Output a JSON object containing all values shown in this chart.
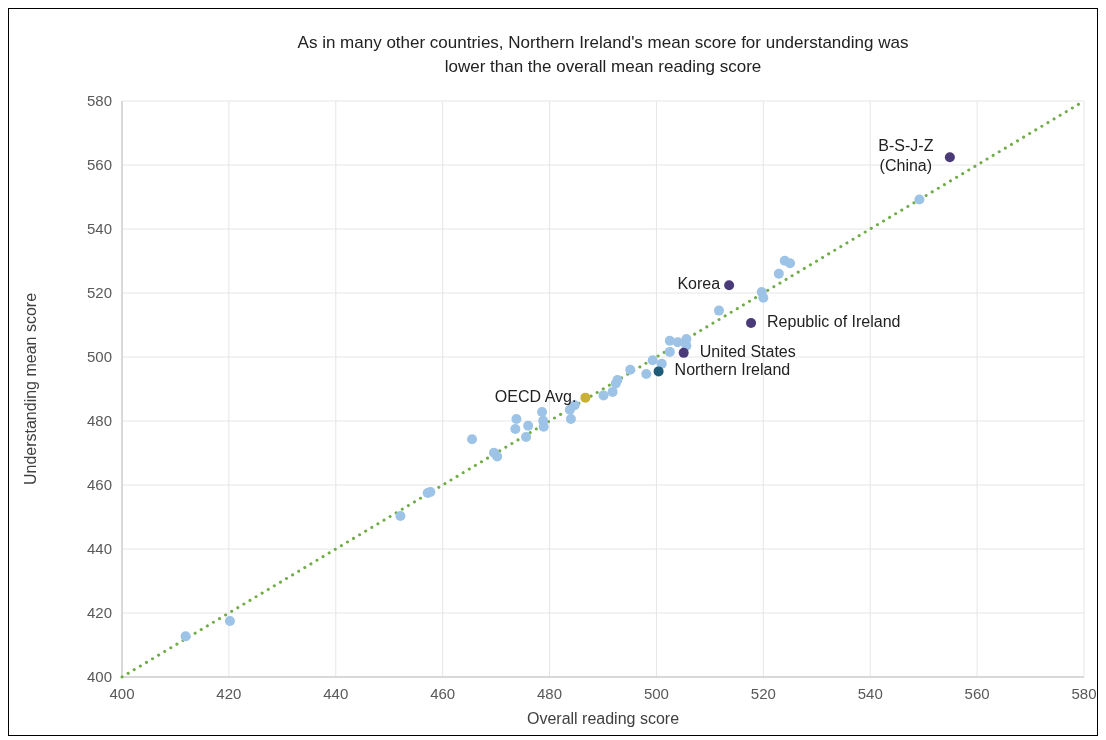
{
  "chart_data": {
    "type": "scatter",
    "title": "As in many other countries, Northern Ireland's mean score for understanding was\nlower than the overall mean reading score",
    "xlabel": "Overall reading score",
    "ylabel": "Understanding mean score",
    "xlim": [
      400,
      580
    ],
    "ylim": [
      400,
      580
    ],
    "xticks": [
      400,
      420,
      440,
      460,
      480,
      500,
      520,
      540,
      560,
      580
    ],
    "yticks": [
      400,
      420,
      440,
      460,
      480,
      500,
      520,
      540,
      560,
      580
    ],
    "grid": true,
    "marker": "circle",
    "series": [
      {
        "type": "line",
        "color": "#70ad47",
        "line_style": "dotted",
        "marker": "none",
        "x": [
          400,
          580
        ],
        "values": [
          400,
          580
        ]
      },
      {
        "color": "#9dc3e6",
        "x": [
          411.9,
          420.2,
          452.1,
          457.2,
          457.7,
          465.5,
          469.6,
          470.2,
          473.8,
          473.6,
          476.0,
          475.6,
          478.6,
          478.8,
          478.9,
          484.0,
          483.8,
          484.7,
          490.1,
          491.8,
          492.4,
          492.7,
          495.1,
          498.1,
          499.3,
          501.0,
          502.5,
          502.5,
          505.6,
          505.6,
          504.0,
          511.7,
          519.7,
          520.0,
          522.9,
          524.0,
          525.0,
          549.2
        ],
        "values": [
          412.7,
          417.5,
          450.3,
          457.5,
          457.8,
          474.3,
          470.1,
          468.9,
          480.6,
          477.5,
          478.5,
          475.0,
          482.8,
          480.1,
          478.2,
          480.6,
          483.5,
          484.9,
          488.0,
          489.1,
          491.7,
          492.8,
          496.0,
          494.7,
          499.0,
          497.9,
          505.1,
          501.6,
          505.6,
          503.5,
          504.6,
          514.5,
          520.3,
          518.5,
          526.0,
          530.1,
          529.3,
          549.2
        ]
      },
      {
        "name": "OECD Avg.",
        "color": "#c9b037",
        "x": [
          486.7
        ],
        "values": [
          487.3
        ]
      },
      {
        "name": "Northern Ireland",
        "color": "#1f5c7a",
        "x": [
          500.4
        ],
        "values": [
          495.5
        ]
      },
      {
        "name": "United States",
        "color": "#4b3a78",
        "x": [
          505.1
        ],
        "values": [
          501.3
        ]
      },
      {
        "name": "Korea",
        "color": "#4b3a78",
        "x": [
          513.6
        ],
        "values": [
          522.4
        ]
      },
      {
        "name": "Republic of Ireland",
        "color": "#4b3a78",
        "x": [
          517.7
        ],
        "values": [
          510.6
        ]
      },
      {
        "name": "B-S-J-Z\n(China)",
        "color": "#4b3a78",
        "x": [
          554.9
        ],
        "values": [
          562.4
        ]
      }
    ]
  }
}
